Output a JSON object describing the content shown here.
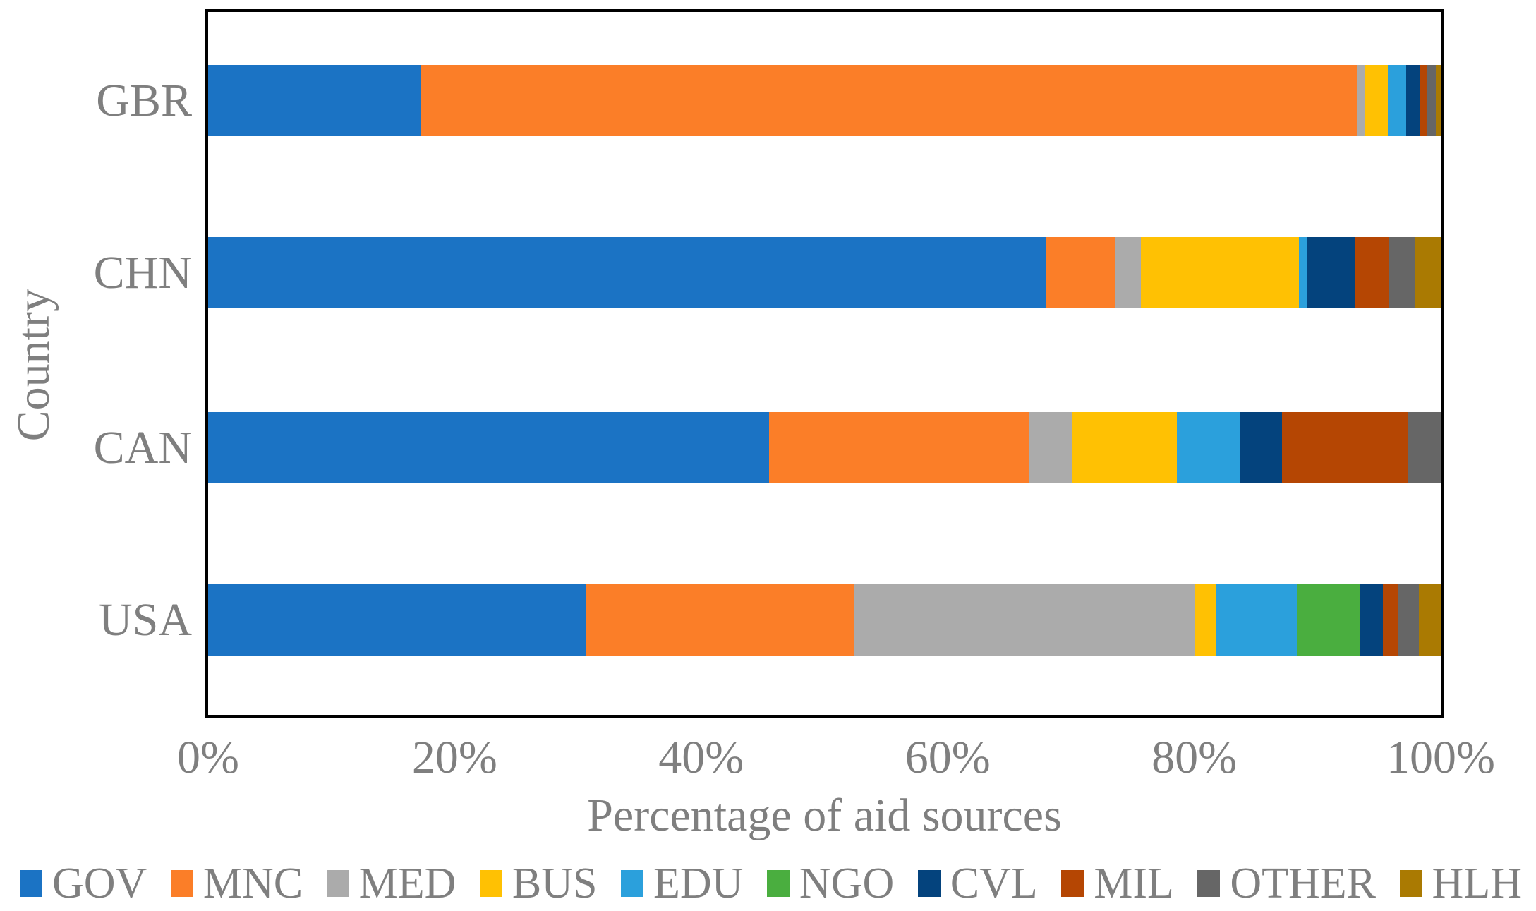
{
  "chart": {
    "y_axis_title": "Country",
    "x_axis_title": "Percentage of aid sources",
    "frame_color": "#000000",
    "text_color": "#7f7f7f",
    "background": "#ffffff"
  },
  "chart_data": {
    "type": "bar",
    "orientation": "horizontal-stacked",
    "title": "",
    "xlabel": "Percentage of aid sources",
    "ylabel": "Country",
    "xlim": [
      0,
      100
    ],
    "x_tick_labels": [
      "0%",
      "20%",
      "40%",
      "60%",
      "80%",
      "100%"
    ],
    "x_tick_values": [
      0,
      20,
      40,
      60,
      80,
      100
    ],
    "grid": false,
    "legend_position": "bottom",
    "categories": [
      "GBR",
      "CHN",
      "CAN",
      "USA"
    ],
    "series": [
      {
        "name": "GOV",
        "color": "#1b73c4",
        "values": [
          17.3,
          68.0,
          45.5,
          30.7
        ]
      },
      {
        "name": "MNC",
        "color": "#fb7e28",
        "values": [
          75.9,
          5.6,
          21.1,
          21.7
        ]
      },
      {
        "name": "MED",
        "color": "#ababab",
        "values": [
          0.7,
          2.1,
          3.5,
          27.6
        ]
      },
      {
        "name": "BUS",
        "color": "#ffc103",
        "values": [
          1.8,
          12.8,
          8.5,
          1.8
        ]
      },
      {
        "name": "EDU",
        "color": "#2ba0dc",
        "values": [
          1.5,
          0.6,
          5.1,
          6.5
        ]
      },
      {
        "name": "NGO",
        "color": "#4aae3f",
        "values": [
          0.0,
          0.0,
          0.0,
          5.1
        ]
      },
      {
        "name": "CVL",
        "color": "#04437d",
        "values": [
          1.1,
          3.9,
          3.4,
          1.9
        ]
      },
      {
        "name": "MIL",
        "color": "#b54603",
        "values": [
          0.6,
          2.8,
          10.2,
          1.2
        ]
      },
      {
        "name": "OTHER",
        "color": "#666666",
        "values": [
          0.7,
          2.1,
          2.7,
          1.7
        ]
      },
      {
        "name": "HLH",
        "color": "#aa7a02",
        "values": [
          0.4,
          2.1,
          0.0,
          1.8
        ]
      }
    ]
  }
}
